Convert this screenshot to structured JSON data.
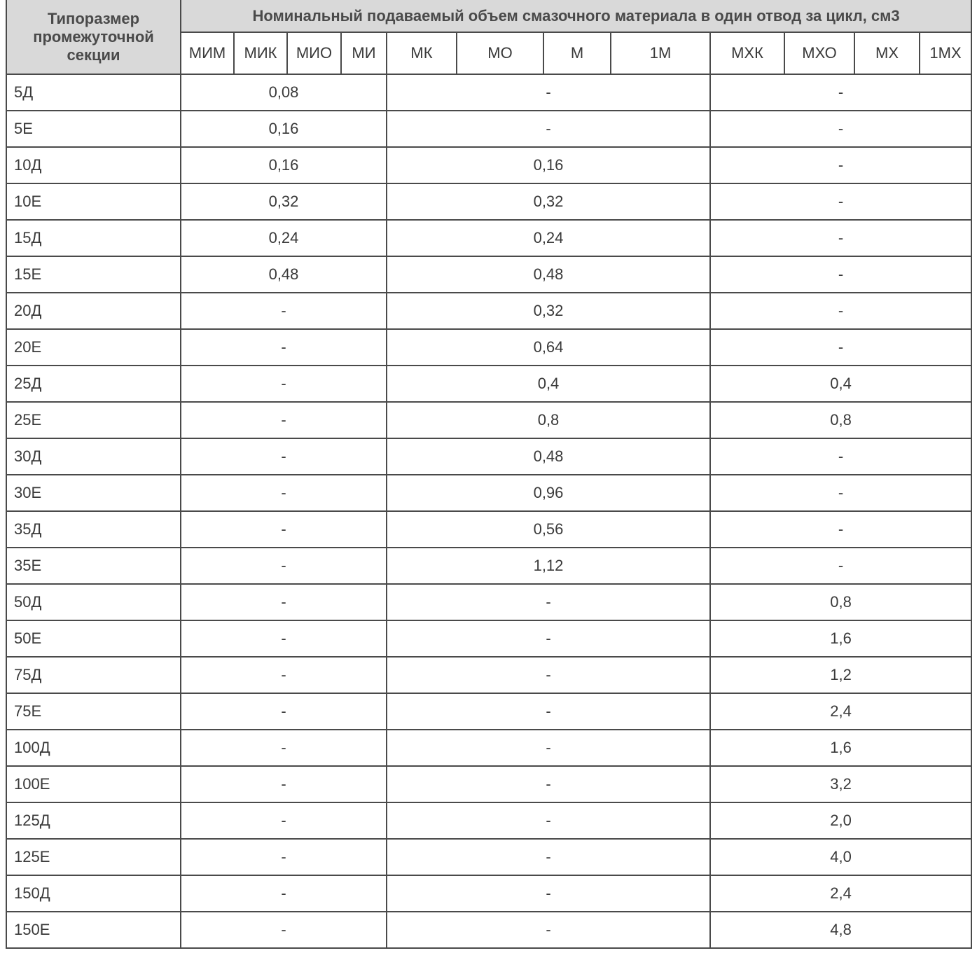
{
  "header": {
    "section_type": "Типоразмер промежуточной секции",
    "volume_title": "Номинальный подаваемый объем смазочного материала в один отвод за цикл, см3",
    "columns": [
      "МИМ",
      "МИК",
      "МИО",
      "МИ",
      "МК",
      "МО",
      "М",
      "1М",
      "МХК",
      "МХО",
      "МХ",
      "1МХ"
    ]
  },
  "rows": [
    {
      "name": "5Д",
      "mi": "0,08",
      "m": "-",
      "mx": "-"
    },
    {
      "name": "5Е",
      "mi": "0,16",
      "m": "-",
      "mx": "-"
    },
    {
      "name": "10Д",
      "mi": "0,16",
      "m": "0,16",
      "mx": "-"
    },
    {
      "name": "10Е",
      "mi": "0,32",
      "m": "0,32",
      "mx": "-"
    },
    {
      "name": "15Д",
      "mi": "0,24",
      "m": "0,24",
      "mx": "-"
    },
    {
      "name": "15Е",
      "mi": "0,48",
      "m": "0,48",
      "mx": "-"
    },
    {
      "name": "20Д",
      "mi": "-",
      "m": "0,32",
      "mx": "-"
    },
    {
      "name": "20Е",
      "mi": "-",
      "m": "0,64",
      "mx": "-"
    },
    {
      "name": "25Д",
      "mi": "-",
      "m": "0,4",
      "mx": "0,4"
    },
    {
      "name": "25Е",
      "mi": "-",
      "m": "0,8",
      "mx": "0,8"
    },
    {
      "name": "30Д",
      "mi": "-",
      "m": "0,48",
      "mx": "-"
    },
    {
      "name": "30Е",
      "mi": "-",
      "m": "0,96",
      "mx": "-"
    },
    {
      "name": "35Д",
      "mi": "-",
      "m": "0,56",
      "mx": "-"
    },
    {
      "name": "35Е",
      "mi": "-",
      "m": "1,12",
      "mx": "-"
    },
    {
      "name": "50Д",
      "mi": "-",
      "m": "-",
      "mx": "0,8"
    },
    {
      "name": "50Е",
      "mi": "-",
      "m": "-",
      "mx": "1,6"
    },
    {
      "name": "75Д",
      "mi": "-",
      "m": "-",
      "mx": "1,2"
    },
    {
      "name": "75Е",
      "mi": "-",
      "m": "-",
      "mx": "2,4"
    },
    {
      "name": "100Д",
      "mi": "-",
      "m": "-",
      "mx": "1,6"
    },
    {
      "name": "100Е",
      "mi": "-",
      "m": "-",
      "mx": "3,2"
    },
    {
      "name": "125Д",
      "mi": "-",
      "m": "-",
      "mx": "2,0"
    },
    {
      "name": "125Е",
      "mi": "-",
      "m": "-",
      "mx": "4,0"
    },
    {
      "name": "150Д",
      "mi": "-",
      "m": "-",
      "mx": "2,4"
    },
    {
      "name": "150Е",
      "mi": "-",
      "m": "-",
      "mx": "4,8"
    }
  ],
  "colors": {
    "header_bg": "#d9d9d9",
    "border": "#4a4a4a",
    "text": "#3a3a3a"
  }
}
